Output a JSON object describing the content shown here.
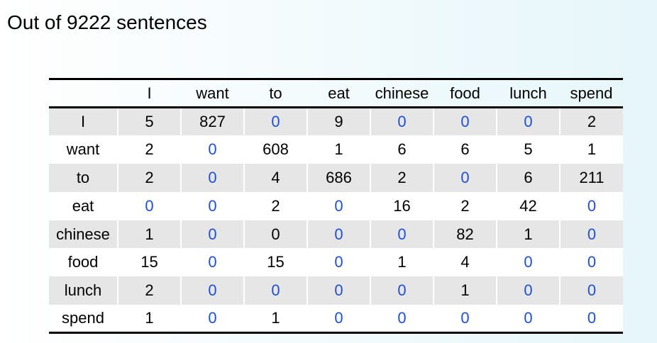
{
  "title": "Out of 9222 sentences",
  "colors": {
    "zero_value": "#1f4fd6",
    "header_rule": "#000000",
    "band": "#e6e6e6"
  },
  "table": {
    "columns": [
      "",
      "I",
      "want",
      "to",
      "eat",
      "chinese",
      "food",
      "lunch",
      "spend"
    ],
    "rows": [
      {
        "label": "I",
        "values": [
          "5",
          "827",
          "0",
          "9",
          "0",
          "0",
          "0",
          "2"
        ],
        "zero": [
          false,
          false,
          true,
          false,
          true,
          true,
          true,
          false
        ]
      },
      {
        "label": "want",
        "values": [
          "2",
          "0",
          "608",
          "1",
          "6",
          "6",
          "5",
          "1"
        ],
        "zero": [
          false,
          true,
          false,
          false,
          false,
          false,
          false,
          false
        ]
      },
      {
        "label": "to",
        "values": [
          "2",
          "0",
          "4",
          "686",
          "2",
          "0",
          "6",
          "211"
        ],
        "zero": [
          false,
          true,
          false,
          false,
          false,
          true,
          false,
          false
        ]
      },
      {
        "label": "eat",
        "values": [
          "0",
          "0",
          "2",
          "0",
          "16",
          "2",
          "42",
          "0"
        ],
        "zero": [
          true,
          true,
          false,
          true,
          false,
          false,
          false,
          true
        ]
      },
      {
        "label": "chinese",
        "values": [
          "1",
          "0",
          "0",
          "0",
          "0",
          "82",
          "1",
          "0"
        ],
        "zero": [
          false,
          true,
          false,
          true,
          true,
          false,
          false,
          true
        ]
      },
      {
        "label": "food",
        "values": [
          "15",
          "0",
          "15",
          "0",
          "1",
          "4",
          "0",
          "0"
        ],
        "zero": [
          false,
          true,
          false,
          true,
          false,
          false,
          true,
          true
        ]
      },
      {
        "label": "lunch",
        "values": [
          "2",
          "0",
          "0",
          "0",
          "0",
          "1",
          "0",
          "0"
        ],
        "zero": [
          false,
          true,
          true,
          true,
          true,
          false,
          true,
          true
        ]
      },
      {
        "label": "spend",
        "values": [
          "1",
          "0",
          "1",
          "0",
          "0",
          "0",
          "0",
          "0"
        ],
        "zero": [
          false,
          true,
          false,
          true,
          true,
          true,
          true,
          true
        ]
      }
    ]
  }
}
